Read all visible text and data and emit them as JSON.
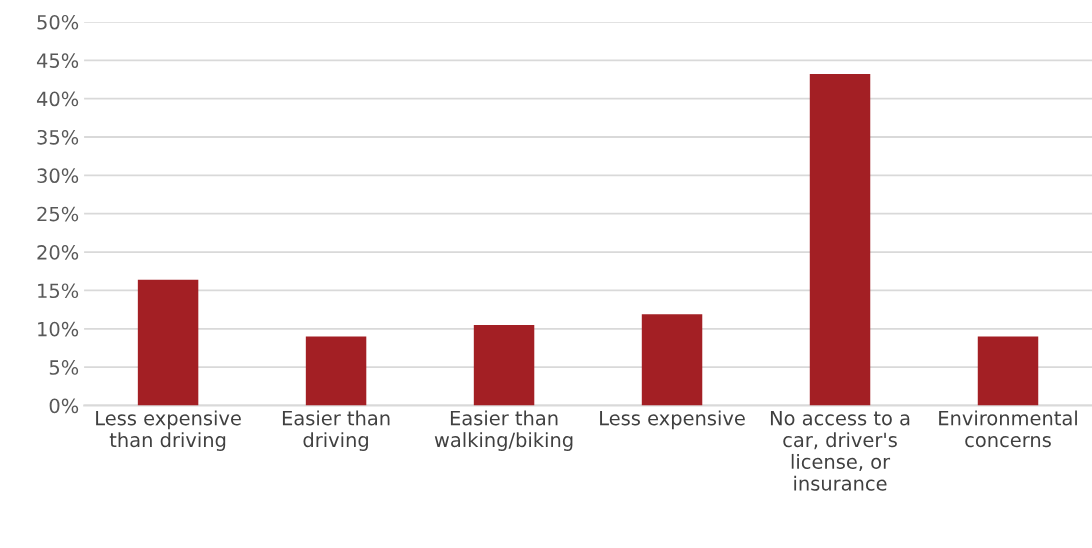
{
  "chart_data": {
    "type": "bar",
    "categories": [
      "Less expensive\nthan driving",
      "Easier than\ndriving",
      "Easier than\nwalking/biking",
      "Less expensive",
      "No access to a\ncar, driver's\nlicense, or\ninsurance",
      "Environmental\nconcerns"
    ],
    "values": [
      16.4,
      9.0,
      10.5,
      11.9,
      43.2,
      9.0
    ],
    "color": "#a31f24",
    "ylim": [
      0,
      50
    ],
    "yticks": [
      {
        "value": 0,
        "label": "0%"
      },
      {
        "value": 5,
        "label": "5%"
      },
      {
        "value": 10,
        "label": "10%"
      },
      {
        "value": 15,
        "label": "15%"
      },
      {
        "value": 20,
        "label": "20%"
      },
      {
        "value": 25,
        "label": "25%"
      },
      {
        "value": 30,
        "label": "30%"
      },
      {
        "value": 35,
        "label": "35%"
      },
      {
        "value": 40,
        "label": "40%"
      },
      {
        "value": 45,
        "label": "45%"
      },
      {
        "value": 50,
        "label": "50%"
      }
    ],
    "grid": "y"
  }
}
